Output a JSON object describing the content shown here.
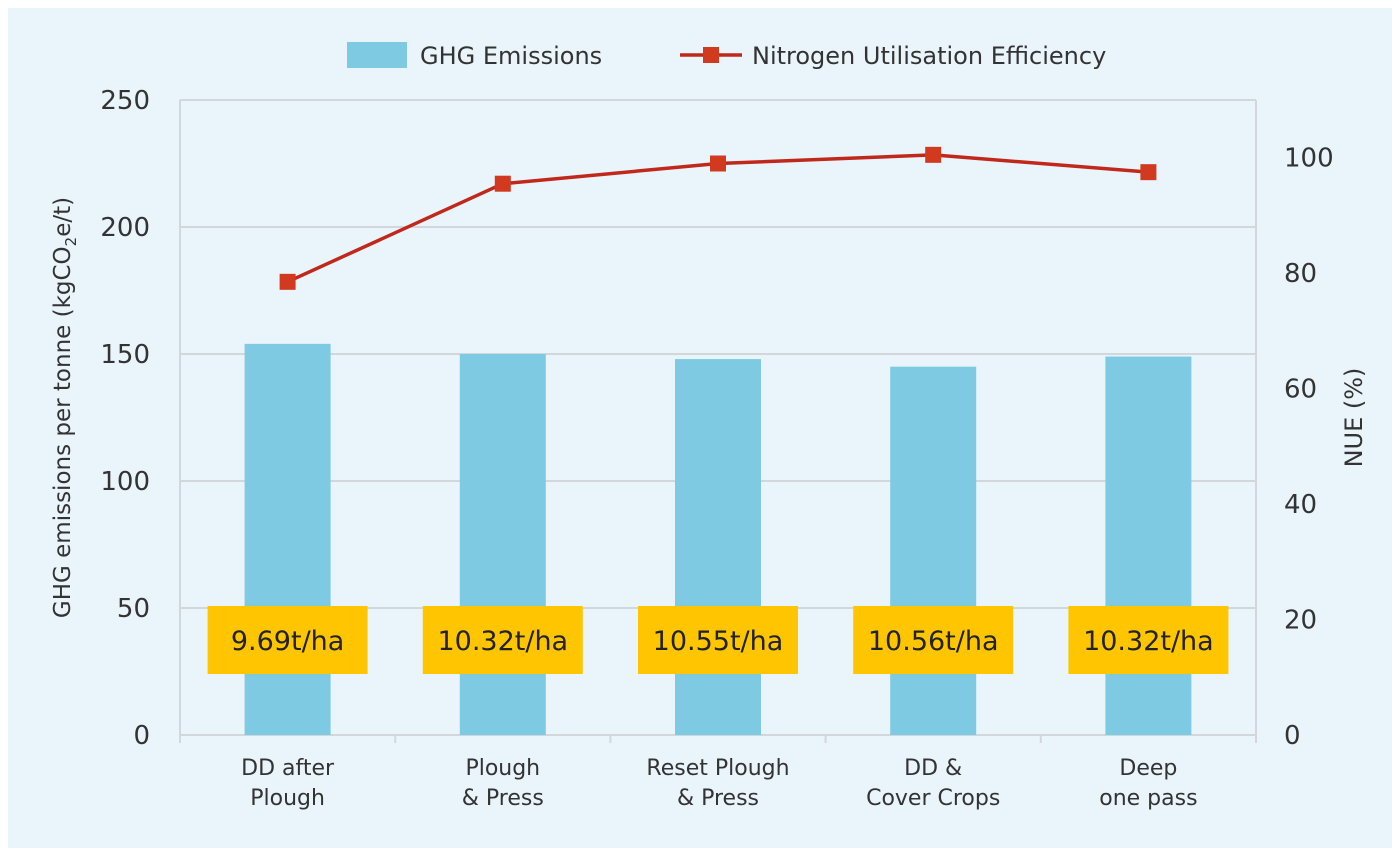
{
  "chart_data": {
    "type": "bar",
    "categories": [
      [
        "DD after",
        "Plough"
      ],
      [
        "Plough",
        "& Press"
      ],
      [
        "Reset Plough",
        "& Press"
      ],
      [
        "DD &",
        "Cover Crops"
      ],
      [
        "Deep",
        "one pass"
      ]
    ],
    "series": [
      {
        "name": "GHG Emissions",
        "type": "bar",
        "axis": "left",
        "values": [
          154,
          150,
          148,
          145,
          149
        ]
      },
      {
        "name": "Nitrogen Utilisation Efficiency",
        "type": "line",
        "axis": "right",
        "values": [
          78.5,
          95.5,
          99,
          100.5,
          97.5
        ]
      }
    ],
    "yield_labels": [
      "9.69t/ha",
      "10.32t/ha",
      "10.55t/ha",
      "10.56t/ha",
      "10.32t/ha"
    ],
    "ylabel_left": {
      "pre": "GHG emissions per tonne (kgCO",
      "sub": "2",
      "post": "e/t)"
    },
    "ylabel_right": "NUE (%)",
    "ylim_left": [
      0,
      250
    ],
    "yticks_left": [
      0,
      50,
      100,
      150,
      200,
      250
    ],
    "ylim_right": [
      0,
      110
    ],
    "yticks_right": [
      0,
      20,
      40,
      60,
      80,
      100
    ],
    "grid": true,
    "legend_position": "top-center",
    "colors": {
      "background": "#eaf4fb",
      "bar": "#7ecae2",
      "line": "#c0281c",
      "marker": "#d23a20",
      "label_box": "#ffc600",
      "grid": "#d2d7db",
      "axis_text": "#333333"
    }
  }
}
